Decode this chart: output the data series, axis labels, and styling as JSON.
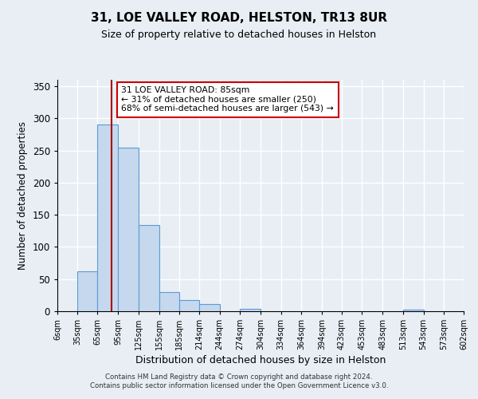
{
  "title": "31, LOE VALLEY ROAD, HELSTON, TR13 8UR",
  "subtitle": "Size of property relative to detached houses in Helston",
  "xlabel": "Distribution of detached houses by size in Helston",
  "ylabel": "Number of detached properties",
  "bin_edges": [
    6,
    35,
    65,
    95,
    125,
    155,
    185,
    214,
    244,
    274,
    304,
    334,
    364,
    394,
    423,
    453,
    483,
    513,
    543,
    573,
    602
  ],
  "bin_labels": [
    "6sqm",
    "35sqm",
    "65sqm",
    "95sqm",
    "125sqm",
    "155sqm",
    "185sqm",
    "214sqm",
    "244sqm",
    "274sqm",
    "304sqm",
    "334sqm",
    "364sqm",
    "394sqm",
    "423sqm",
    "453sqm",
    "483sqm",
    "513sqm",
    "543sqm",
    "573sqm",
    "602sqm"
  ],
  "bar_heights": [
    0,
    62,
    291,
    255,
    134,
    30,
    17,
    11,
    0,
    4,
    0,
    0,
    0,
    0,
    0,
    0,
    0,
    2,
    0,
    0
  ],
  "bar_color": "#c5d8ed",
  "bar_edge_color": "#5b9bd5",
  "ylim": [
    0,
    360
  ],
  "yticks": [
    0,
    50,
    100,
    150,
    200,
    250,
    300,
    350
  ],
  "property_value": 85,
  "red_line_x": 85,
  "annotation_text": "31 LOE VALLEY ROAD: 85sqm\n← 31% of detached houses are smaller (250)\n68% of semi-detached houses are larger (543) →",
  "annotation_box_color": "#ffffff",
  "annotation_box_edge_color": "#cc0000",
  "footer_line1": "Contains HM Land Registry data © Crown copyright and database right 2024.",
  "footer_line2": "Contains public sector information licensed under the Open Government Licence v3.0.",
  "background_color": "#e8eef4",
  "grid_color": "#ffffff",
  "title_fontsize": 11,
  "subtitle_fontsize": 9
}
